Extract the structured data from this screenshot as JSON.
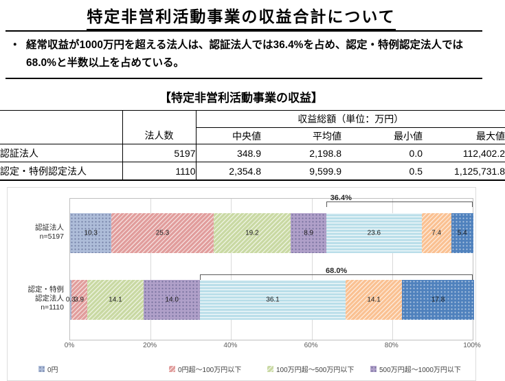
{
  "header": {
    "title": "特定非営利活動事業の収益合計について"
  },
  "summary": {
    "bullet": "・",
    "text": "経常収益が1000万円を超える法人は、認証法人では36.4%を占め、認定・特例認定法人では68.0%と半数以上を占めている。"
  },
  "table": {
    "title": "【特定非営利活動事業の収益】",
    "group_header": "収益総額（単位：万円）",
    "col_headers": [
      "法人数",
      "中央値",
      "平均値",
      "最小値",
      "最大値"
    ],
    "rows": [
      {
        "label": "認証法人",
        "values": [
          "5197",
          "348.9",
          "2,198.8",
          "0.0",
          "112,402.2"
        ]
      },
      {
        "label": "認定・特例認定法人",
        "values": [
          "1110",
          "2,354.8",
          "9,599.9",
          "0.5",
          "1,125,731.8"
        ]
      }
    ]
  },
  "chart_data": {
    "type": "bar",
    "variant": "horizontal-stacked-100pct",
    "x_axis": {
      "min": 0,
      "max": 100,
      "ticks": [
        "0%",
        "20%",
        "40%",
        "60%",
        "80%",
        "100%"
      ]
    },
    "grid": true,
    "segments": [
      {
        "label": "0円",
        "color": "#aebdd9",
        "pattern": "dots-dark"
      },
      {
        "label": "0円超～100万円以下",
        "color": "#e19d9c",
        "pattern": "diag"
      },
      {
        "label": "100万円超～500万円以下",
        "color": "#c9d9a3",
        "pattern": "diag"
      },
      {
        "label": "500万円超～1000万円以下",
        "color": "#b0a0c9",
        "pattern": "dots-dark"
      },
      {
        "label": "",
        "color": "#b9dee9",
        "pattern": "horiz"
      },
      {
        "label": "",
        "color": "#fac192",
        "pattern": "diag"
      },
      {
        "label": "",
        "color": "#4f81bd",
        "pattern": "dots-light"
      }
    ],
    "bars": [
      {
        "label_lines": [
          "認証法人",
          "n=5197"
        ],
        "values": [
          10.3,
          25.3,
          19.2,
          8.9,
          23.6,
          7.4,
          5.4
        ],
        "bracket": {
          "text": "36.4%",
          "from": 63.6,
          "to": 100,
          "label_align": "start"
        }
      },
      {
        "label_lines": [
          "認定・特例",
          "認定法人",
          "n=1110"
        ],
        "values": [
          0.3,
          3.9,
          14.1,
          14.0,
          36.1,
          14.1,
          17.8
        ],
        "bracket": {
          "text": "68.0%",
          "from": 32.3,
          "to": 100,
          "label_align": "center"
        }
      }
    ],
    "legend_visible": [
      "0円",
      "0円超～100万円以下",
      "100万円超～500万円以下",
      "500万円超～1000万円以下"
    ],
    "legend_position": "bottom"
  }
}
